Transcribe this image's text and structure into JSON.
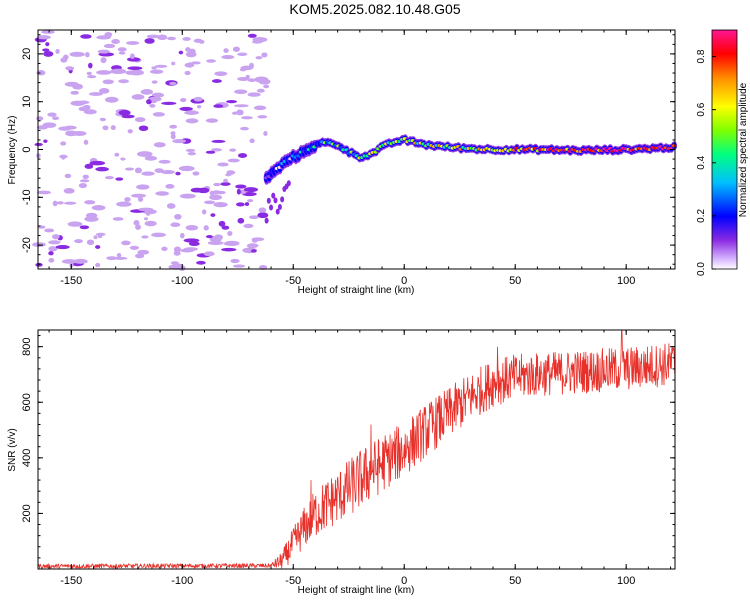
{
  "title": "KOM5.2025.082.10.48.G05",
  "colors": {
    "snr_line": "#e8302a",
    "spectrogram_noise_light": "#c9a3f0",
    "spectrogram_noise_dark": "#8a2be2"
  },
  "chart_data": [
    {
      "id": "spectrogram",
      "type": "heatmap",
      "title": "KOM5.2025.082.10.48.G05",
      "xlabel": "Height of straight line (km)",
      "ylabel": "Frequency (Hz)",
      "xlim": [
        -165,
        122
      ],
      "ylim": [
        -25,
        25
      ],
      "x_ticks": [
        -150,
        -100,
        -50,
        0,
        50,
        100
      ],
      "y_ticks": [
        -20,
        -10,
        0,
        10,
        20
      ],
      "colorbar": {
        "label": "Normalized spectral amplitude",
        "range": [
          0,
          0.9
        ],
        "ticks": [
          0.0,
          0.2,
          0.4,
          0.6,
          0.8
        ],
        "colormap": "rainbow"
      },
      "noise_region_x": [
        -165,
        -62
      ],
      "signal_ridge": [
        {
          "x": -62,
          "f": -6
        },
        {
          "x": -57,
          "f": -4
        },
        {
          "x": -52,
          "f": -2
        },
        {
          "x": -47,
          "f": -1
        },
        {
          "x": -42,
          "f": 0.5
        },
        {
          "x": -36,
          "f": 1.5
        },
        {
          "x": -30,
          "f": 1
        },
        {
          "x": -25,
          "f": -0.5
        },
        {
          "x": -20,
          "f": -1.5
        },
        {
          "x": -15,
          "f": -1
        },
        {
          "x": -10,
          "f": 0.5
        },
        {
          "x": -5,
          "f": 1.5
        },
        {
          "x": 0,
          "f": 2
        },
        {
          "x": 5,
          "f": 1.5
        },
        {
          "x": 10,
          "f": 1
        },
        {
          "x": 20,
          "f": 0.5
        },
        {
          "x": 30,
          "f": 0.2
        },
        {
          "x": 40,
          "f": 0
        },
        {
          "x": 60,
          "f": 0
        },
        {
          "x": 80,
          "f": -0.2
        },
        {
          "x": 100,
          "f": 0
        },
        {
          "x": 110,
          "f": 0.2
        },
        {
          "x": 122,
          "f": 0.5
        }
      ],
      "ridge_amplitude": [
        {
          "x": -62,
          "a": 0.1
        },
        {
          "x": -50,
          "a": 0.2
        },
        {
          "x": -40,
          "a": 0.35
        },
        {
          "x": -20,
          "a": 0.45
        },
        {
          "x": 0,
          "a": 0.55
        },
        {
          "x": 20,
          "a": 0.55
        },
        {
          "x": 40,
          "a": 0.6
        },
        {
          "x": 60,
          "a": 0.7
        },
        {
          "x": 80,
          "a": 0.78
        },
        {
          "x": 100,
          "a": 0.82
        },
        {
          "x": 122,
          "a": 0.85
        }
      ]
    },
    {
      "id": "snr",
      "type": "line",
      "xlabel": "Height of straight line (km)",
      "ylabel": "SNR (v/v)",
      "xlim": [
        -165,
        122
      ],
      "ylim": [
        0,
        860
      ],
      "x_ticks": [
        -150,
        -100,
        -50,
        0,
        50,
        100
      ],
      "y_ticks": [
        200,
        400,
        600,
        800
      ],
      "trend": [
        {
          "x": -165,
          "y": 10
        },
        {
          "x": -60,
          "y": 12
        },
        {
          "x": -55,
          "y": 30
        },
        {
          "x": -50,
          "y": 90
        },
        {
          "x": -45,
          "y": 150
        },
        {
          "x": -40,
          "y": 200
        },
        {
          "x": -30,
          "y": 260
        },
        {
          "x": -20,
          "y": 320
        },
        {
          "x": -10,
          "y": 380
        },
        {
          "x": 0,
          "y": 430
        },
        {
          "x": 10,
          "y": 500
        },
        {
          "x": 20,
          "y": 560
        },
        {
          "x": 30,
          "y": 620
        },
        {
          "x": 40,
          "y": 670
        },
        {
          "x": 50,
          "y": 690
        },
        {
          "x": 60,
          "y": 700
        },
        {
          "x": 80,
          "y": 710
        },
        {
          "x": 100,
          "y": 720
        },
        {
          "x": 122,
          "y": 740
        }
      ],
      "noise_amplitude": [
        {
          "x": -165,
          "n": 8
        },
        {
          "x": -60,
          "n": 8
        },
        {
          "x": -50,
          "n": 60
        },
        {
          "x": -40,
          "n": 90
        },
        {
          "x": -20,
          "n": 110
        },
        {
          "x": 0,
          "n": 100
        },
        {
          "x": 30,
          "n": 90
        },
        {
          "x": 60,
          "n": 80
        },
        {
          "x": 122,
          "n": 80
        }
      ],
      "peaks": [
        {
          "x": -42,
          "y": 320
        },
        {
          "x": -15,
          "y": 520
        },
        {
          "x": 3,
          "y": 500
        },
        {
          "x": 42,
          "y": 800
        },
        {
          "x": 98,
          "y": 860
        }
      ]
    }
  ]
}
